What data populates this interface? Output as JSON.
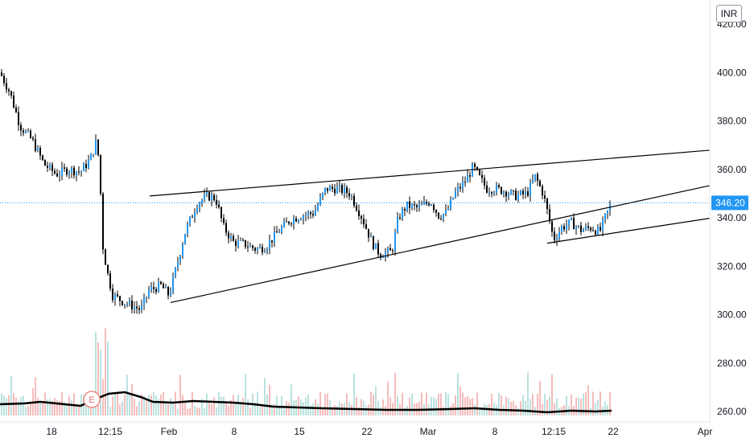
{
  "currency_badge": "INR",
  "colors": {
    "candle_up": "#2196f3",
    "candle_down": "#000000",
    "volume_up": "#b2dfdb",
    "volume_down": "#f5b5b5",
    "price_line": "#2196f3",
    "trendline": "#000000",
    "volume_ma": "#000000"
  },
  "chart_data": {
    "type": "candlestick",
    "y_range": [
      256,
      424
    ],
    "y_ticks": [
      "420.00",
      "400.00",
      "380.00",
      "360.00",
      "340.00",
      "320.00",
      "300.00",
      "280.00",
      "260.00"
    ],
    "x_ticks": [
      "18",
      "12:15",
      "Feb",
      "8",
      "15",
      "22",
      "Mar",
      "8",
      "12:15",
      "22",
      "Apr"
    ],
    "current_price": "346.20",
    "earnings_marker": "E",
    "price_path": [
      [
        0,
        400
      ],
      [
        12,
        392
      ],
      [
        25,
        378
      ],
      [
        40,
        372
      ],
      [
        55,
        362
      ],
      [
        70,
        358
      ],
      [
        85,
        360
      ],
      [
        100,
        359
      ],
      [
        112,
        364
      ],
      [
        120,
        372
      ],
      [
        124,
        360
      ],
      [
        127,
        330
      ],
      [
        133,
        318
      ],
      [
        140,
        308
      ],
      [
        150,
        306
      ],
      [
        162,
        304
      ],
      [
        175,
        302
      ],
      [
        185,
        310
      ],
      [
        200,
        312
      ],
      [
        210,
        308
      ],
      [
        218,
        318
      ],
      [
        230,
        334
      ],
      [
        245,
        346
      ],
      [
        258,
        349
      ],
      [
        268,
        348
      ],
      [
        278,
        336
      ],
      [
        290,
        330
      ],
      [
        305,
        329
      ],
      [
        318,
        327
      ],
      [
        330,
        328
      ],
      [
        345,
        334
      ],
      [
        360,
        339
      ],
      [
        375,
        341
      ],
      [
        390,
        342
      ],
      [
        405,
        352
      ],
      [
        420,
        352
      ],
      [
        435,
        350
      ],
      [
        450,
        340
      ],
      [
        462,
        330
      ],
      [
        472,
        325
      ],
      [
        487,
        326
      ],
      [
        495,
        340
      ],
      [
        505,
        345
      ],
      [
        520,
        344
      ],
      [
        535,
        347
      ],
      [
        545,
        341
      ],
      [
        555,
        342
      ],
      [
        565,
        350
      ],
      [
        578,
        355
      ],
      [
        588,
        361
      ],
      [
        595,
        357
      ],
      [
        605,
        352
      ],
      [
        615,
        352
      ],
      [
        628,
        351
      ],
      [
        640,
        349
      ],
      [
        655,
        350
      ],
      [
        665,
        357
      ],
      [
        675,
        350
      ],
      [
        682,
        340
      ],
      [
        688,
        331
      ],
      [
        698,
        336
      ],
      [
        710,
        338
      ],
      [
        722,
        335
      ],
      [
        735,
        336
      ],
      [
        745,
        334
      ],
      [
        752,
        340
      ],
      [
        760,
        346.2
      ]
    ],
    "trendlines": [
      {
        "from": [
          186,
          349
        ],
        "to": [
          882,
          367.9
        ]
      },
      {
        "from": [
          212,
          305
        ],
        "to": [
          882,
          353.3
        ]
      },
      {
        "from": [
          680,
          329.5
        ],
        "to": [
          882,
          339.8
        ]
      }
    ]
  }
}
